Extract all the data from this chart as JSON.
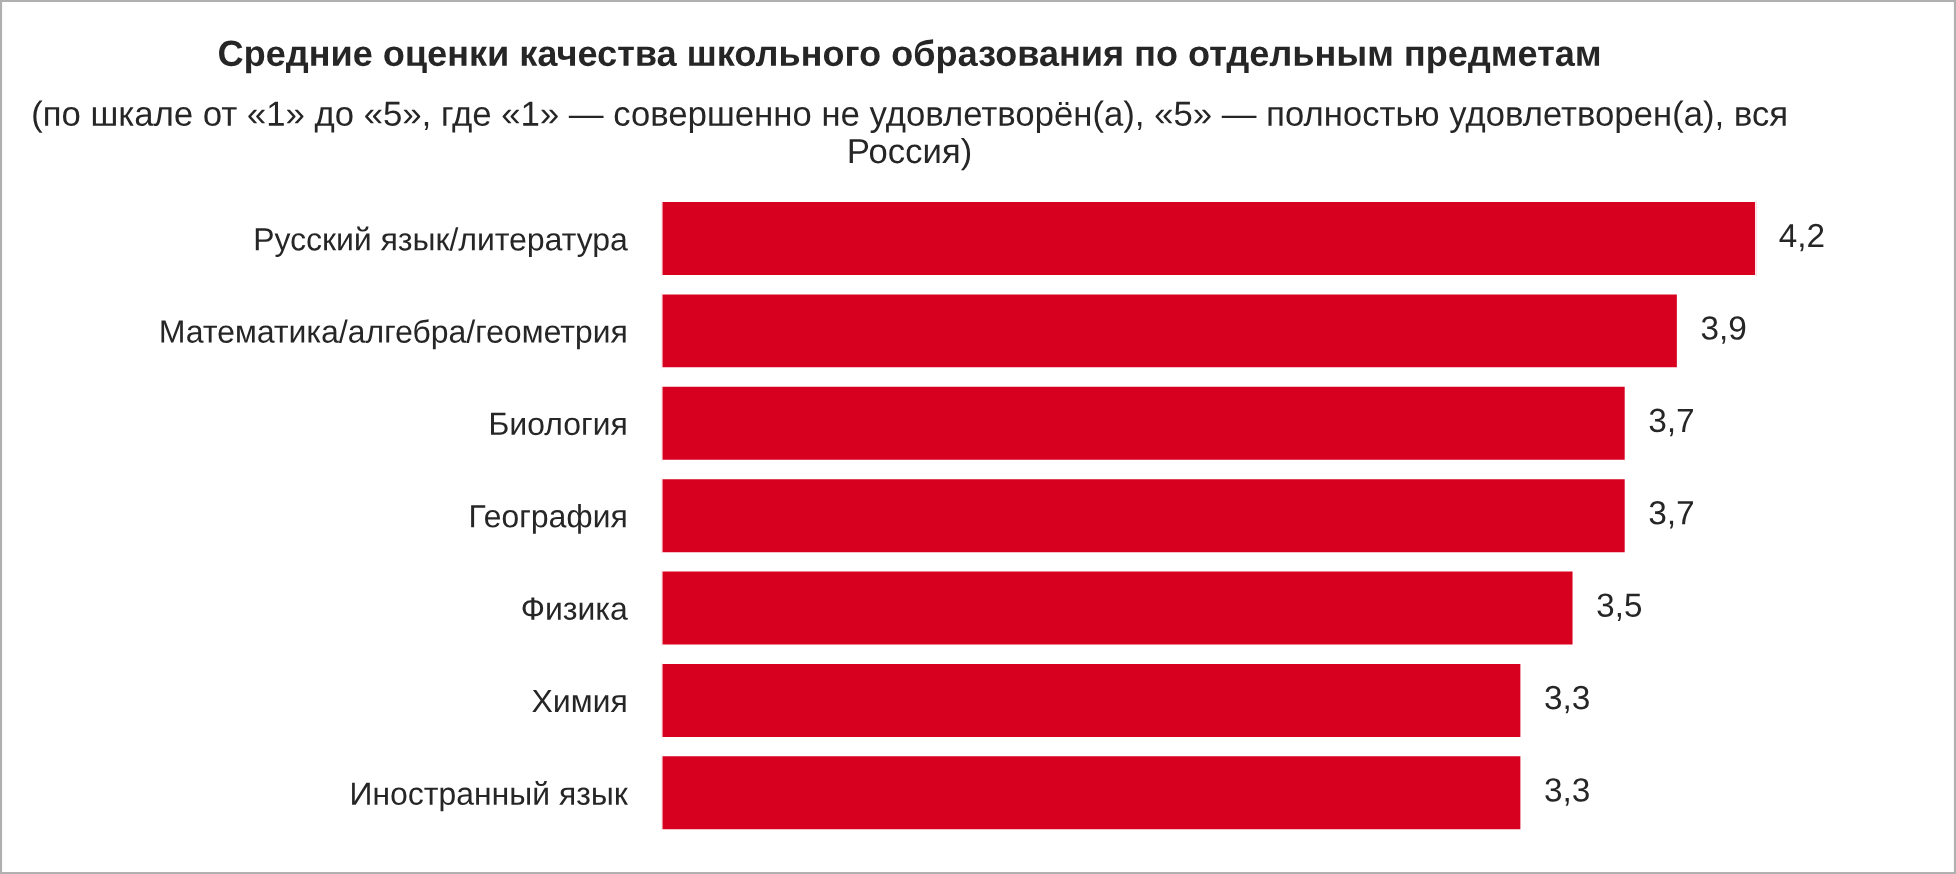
{
  "chart_data": {
    "type": "bar",
    "orientation": "horizontal",
    "title": "Средние оценки качества школьного образования по отдельным предметам",
    "subtitle": "(по шкале от «1» до «5», где «1» — совершенно не удовлетворён(а), «5» — полностью удовлетворен(а), вся Россия)",
    "categories": [
      "Русский язык/литература",
      "Математика/алгебра/геометрия",
      "Биология",
      "География",
      "Физика",
      "Химия",
      "Иностранный язык"
    ],
    "values": [
      4.2,
      3.9,
      3.7,
      3.7,
      3.5,
      3.3,
      3.3
    ],
    "value_labels": [
      "4,2",
      "3,9",
      "3,7",
      "3,7",
      "3,5",
      "3,3",
      "3,3"
    ],
    "color": "#d7001f",
    "grid": false,
    "legend": false,
    "tick_labels": "y"
  }
}
